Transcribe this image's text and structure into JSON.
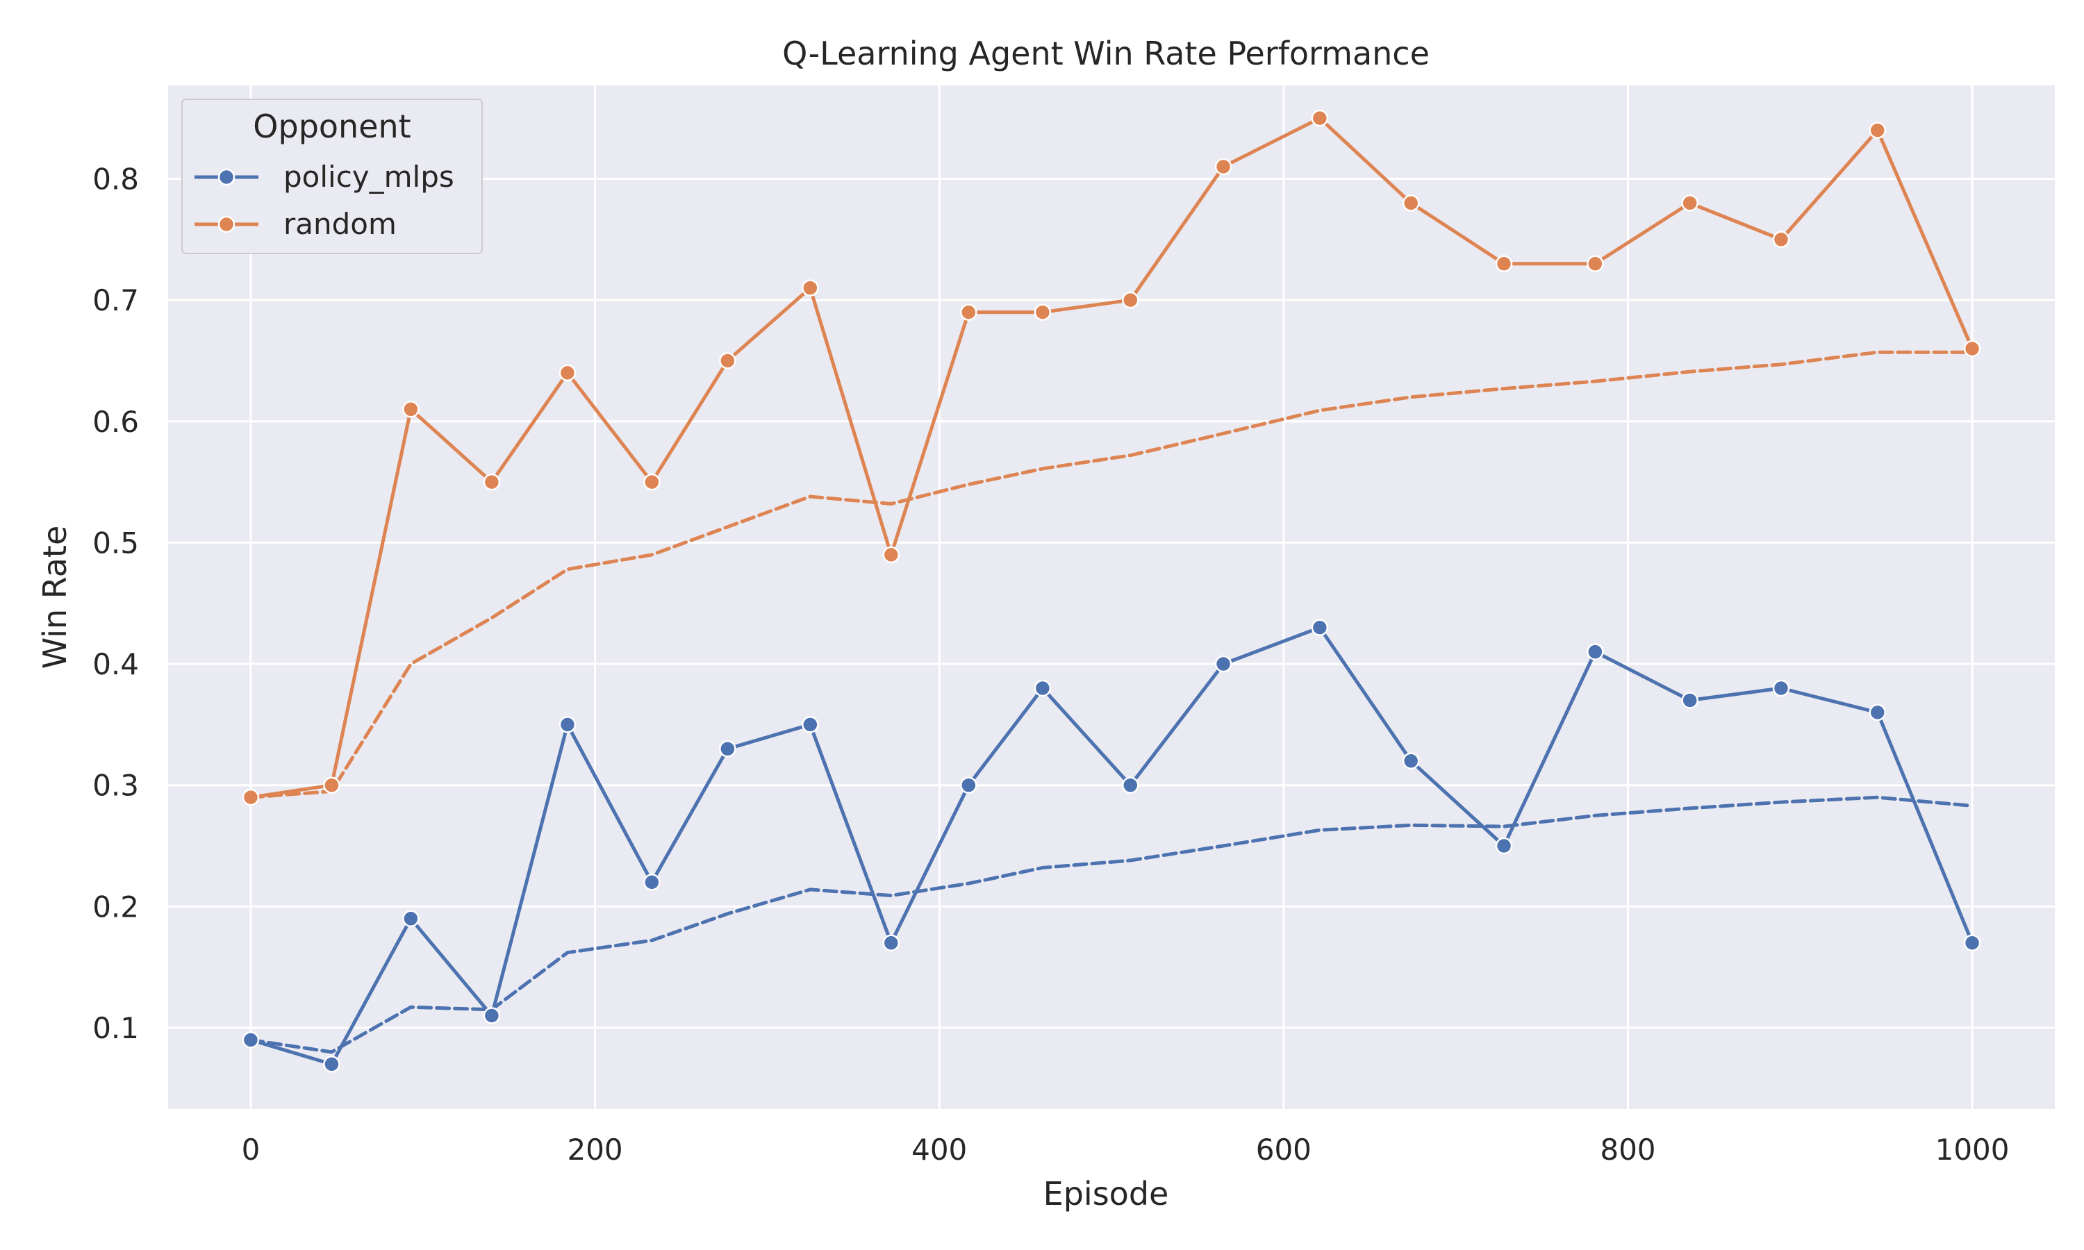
{
  "chart_data": {
    "type": "line",
    "title": "Q-Learning Agent Win Rate Performance",
    "xlabel": "Episode",
    "ylabel": "Win Rate",
    "xlim": [
      -48,
      1048
    ],
    "ylim": [
      0.033,
      0.877
    ],
    "xticks": [
      0,
      200,
      400,
      600,
      800,
      1000
    ],
    "yticks": [
      0.1,
      0.2,
      0.3,
      0.4,
      0.5,
      0.6,
      0.7,
      0.8
    ],
    "grid": true,
    "legend": {
      "title": "Opponent",
      "placement": "top-left"
    },
    "x": [
      0,
      47,
      93,
      140,
      184,
      233,
      277,
      325,
      372,
      417,
      460,
      511,
      565,
      621,
      674,
      728,
      781,
      836,
      889,
      945,
      1000
    ],
    "series": [
      {
        "name": "policy_mlps",
        "color": "#4c72b0",
        "values": [
          0.09,
          0.07,
          0.19,
          0.11,
          0.35,
          0.22,
          0.33,
          0.35,
          0.17,
          0.3,
          0.38,
          0.3,
          0.4,
          0.43,
          0.32,
          0.25,
          0.41,
          0.37,
          0.38,
          0.36,
          0.17
        ],
        "trend": [
          0.09,
          0.08,
          0.117,
          0.115,
          0.162,
          0.172,
          0.194,
          0.214,
          0.209,
          0.219,
          0.232,
          0.238,
          0.25,
          0.263,
          0.267,
          0.266,
          0.275,
          0.281,
          0.286,
          0.29,
          0.283
        ]
      },
      {
        "name": "random",
        "color": "#dd8452",
        "values": [
          0.29,
          0.3,
          0.61,
          0.55,
          0.64,
          0.55,
          0.65,
          0.71,
          0.49,
          0.69,
          0.69,
          0.7,
          0.81,
          0.85,
          0.78,
          0.73,
          0.73,
          0.78,
          0.75,
          0.84,
          0.66
        ],
        "trend": [
          0.29,
          0.295,
          0.4,
          0.438,
          0.478,
          0.49,
          0.513,
          0.538,
          0.532,
          0.548,
          0.561,
          0.572,
          0.59,
          0.609,
          0.62,
          0.627,
          0.633,
          0.641,
          0.647,
          0.657,
          0.657
        ]
      }
    ]
  }
}
